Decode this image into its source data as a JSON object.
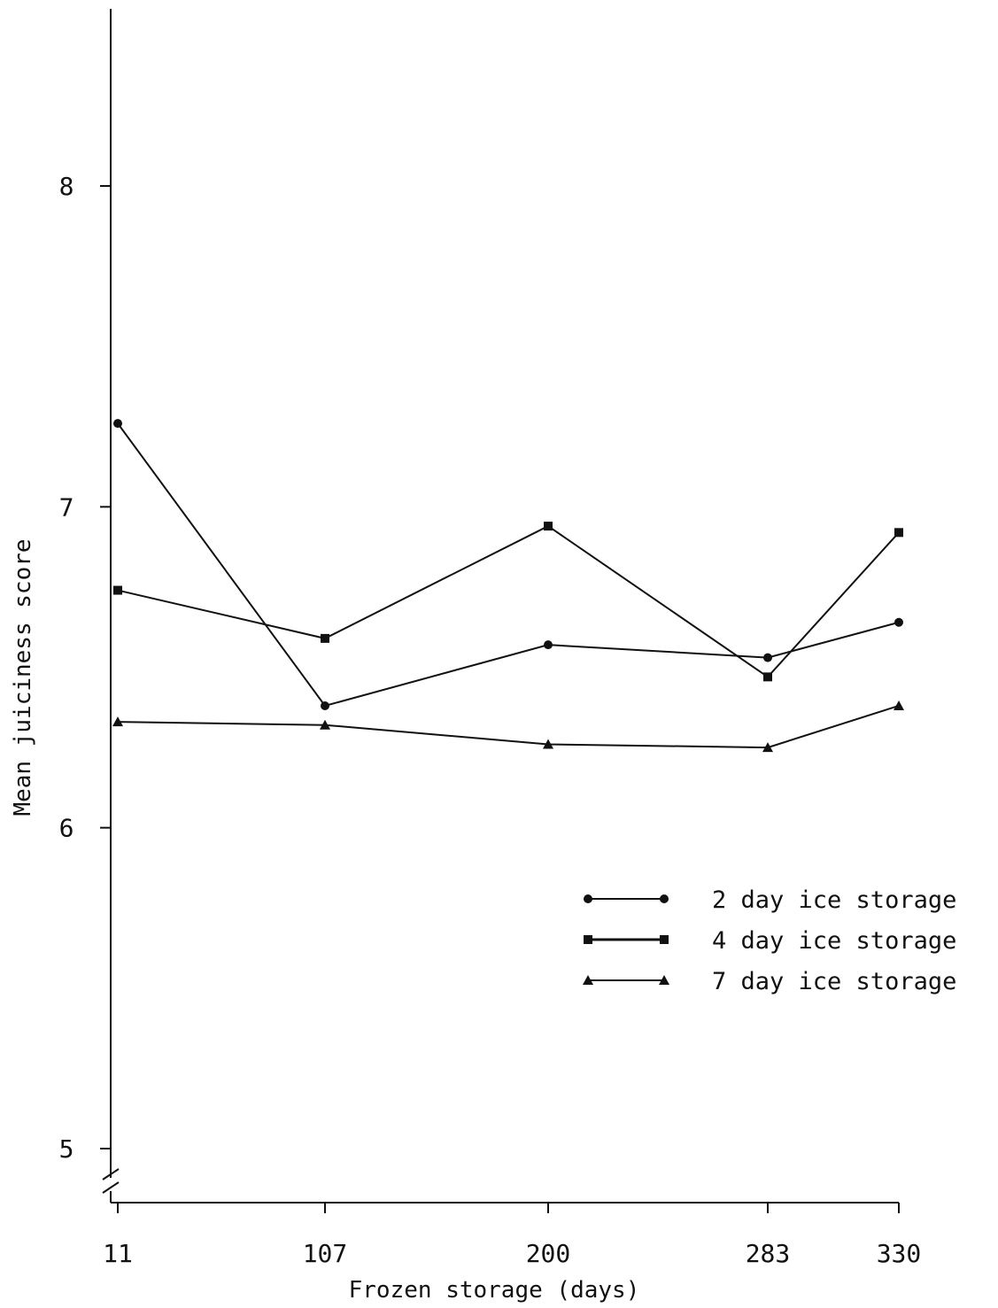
{
  "chart_data": {
    "type": "line",
    "title": "",
    "xlabel": "Frozen storage (days)",
    "ylabel": "Mean juiciness score",
    "x": [
      11,
      107,
      200,
      283,
      330
    ],
    "x_tick_labels": [
      "11",
      "107",
      "200",
      "283",
      "330"
    ],
    "y_ticks": [
      5,
      6,
      7,
      8
    ],
    "y_tick_labels": [
      "5",
      "6",
      "7",
      "8"
    ],
    "ylim": [
      4.8,
      8.6
    ],
    "y_axis_break": true,
    "grid": false,
    "legend_position": "lower-right",
    "series": [
      {
        "name": "2 day ice storage",
        "marker": "circle",
        "values": [
          7.26,
          6.38,
          6.57,
          6.53,
          6.64
        ]
      },
      {
        "name": "4 day ice storage",
        "marker": "square",
        "values": [
          6.74,
          6.59,
          6.94,
          6.47,
          6.92
        ]
      },
      {
        "name": "7 day ice storage",
        "marker": "triangle",
        "values": [
          6.33,
          6.32,
          6.26,
          6.25,
          6.38
        ]
      }
    ]
  }
}
